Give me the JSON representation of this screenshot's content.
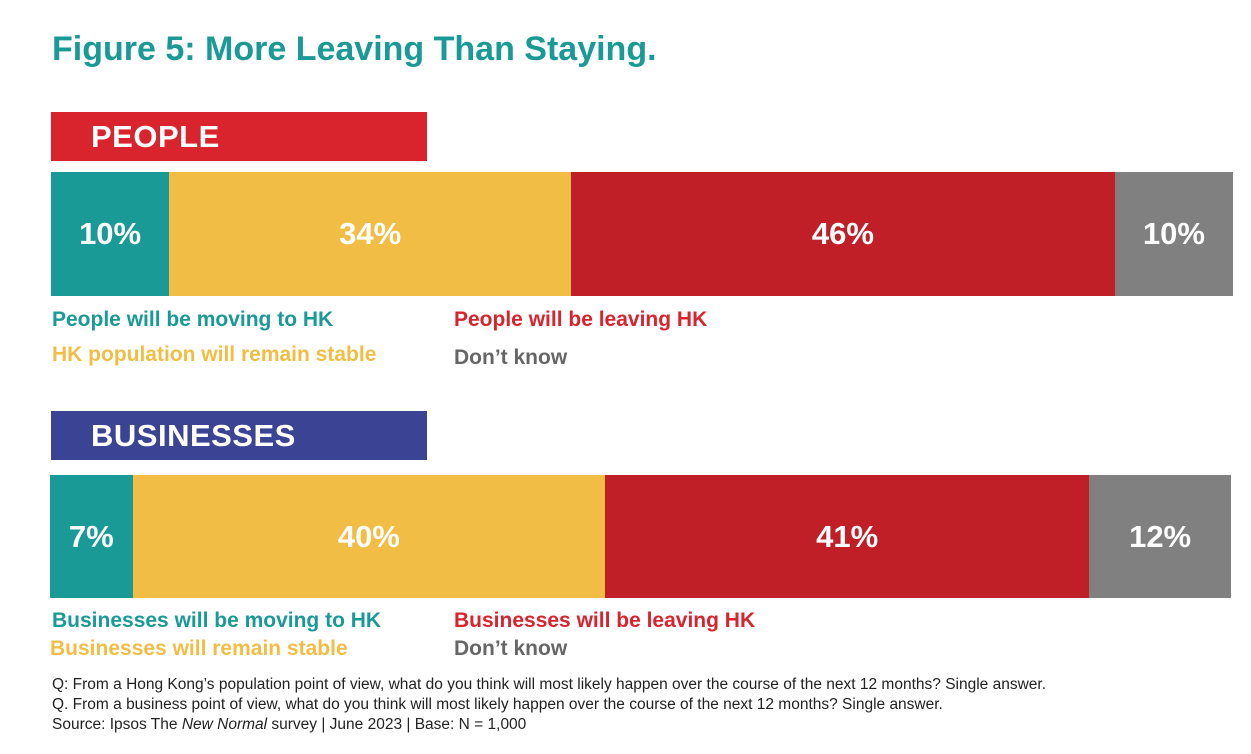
{
  "title": "Figure 5: More Leaving Than Staying.",
  "colors": {
    "title": "#1a9a96",
    "people_header": "#d9232d",
    "business_header": "#3a4394",
    "moving": "#1a9a96",
    "stable": "#f2bd45",
    "leaving": "#c01f27",
    "dont_know": "#808080"
  },
  "people": {
    "header": "PEOPLE",
    "legend": {
      "moving": "People will be moving to HK",
      "stable": "HK population will remain stable",
      "leaving": "People will be leaving HK",
      "dont_know": "Don’t know"
    }
  },
  "businesses": {
    "header": "BUSINESSES",
    "legend": {
      "moving": "Businesses will be moving to HK",
      "stable": "Businesses will remain stable",
      "leaving": "Businesses will be leaving HK",
      "dont_know": "Don’t know"
    }
  },
  "footnotes": {
    "q1": "Q: From a Hong Kong’s population point of view, what do you think will most likely happen over the course of the next 12 months? Single answer.",
    "q2": "Q. From a business point of view, what do you think will most likely happen over the course of the next 12 months? Single answer.",
    "source_prefix": "Source: Ipsos The ",
    "source_italic": "New Normal",
    "source_suffix": " survey | June 2023 | Base: N = 1,000"
  },
  "chart_data": [
    {
      "type": "bar",
      "stacked": true,
      "orientation": "horizontal",
      "title": "PEOPLE",
      "categories": [
        "People will be moving to HK",
        "HK population will remain stable",
        "People will be leaving HK",
        "Don’t know"
      ],
      "values": [
        10,
        34,
        46,
        10
      ],
      "labels": [
        "10%",
        "34%",
        "46%",
        "10%"
      ],
      "colors": [
        "#1a9a96",
        "#f2bd45",
        "#c01f27",
        "#808080"
      ]
    },
    {
      "type": "bar",
      "stacked": true,
      "orientation": "horizontal",
      "title": "BUSINESSES",
      "categories": [
        "Businesses will be moving to HK",
        "Businesses will remain stable",
        "Businesses will be leaving HK",
        "Don’t know"
      ],
      "values": [
        7,
        40,
        41,
        12
      ],
      "labels": [
        "7%",
        "40%",
        "41%",
        "12%"
      ],
      "colors": [
        "#1a9a96",
        "#f2bd45",
        "#c01f27",
        "#808080"
      ]
    }
  ]
}
